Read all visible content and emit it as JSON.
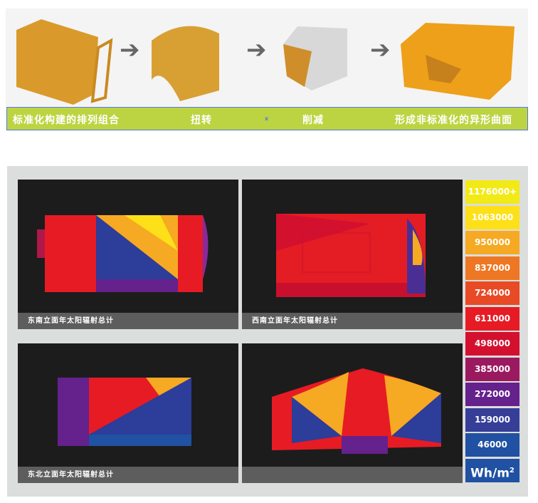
{
  "process": {
    "steps": [
      "标准化构建的排列组合",
      "扭转",
      "削减",
      "形成非标准化的异形曲面"
    ],
    "marker": "x"
  },
  "panels": [
    {
      "label": "东南立面年太阳辐射总计"
    },
    {
      "label": "西南立面年太阳辐射总计"
    },
    {
      "label": "东北立面年太阳辐射总计"
    },
    {
      "label": ""
    }
  ],
  "legend": {
    "items": [
      {
        "label": "1176000+",
        "color": "#f2ea17"
      },
      {
        "label": "1063000",
        "color": "#fde018"
      },
      {
        "label": "950000",
        "color": "#f6a922"
      },
      {
        "label": "837000",
        "color": "#ee7723"
      },
      {
        "label": "724000",
        "color": "#e84a25"
      },
      {
        "label": "611000",
        "color": "#e71b24"
      },
      {
        "label": "498000",
        "color": "#d3102e"
      },
      {
        "label": "385000",
        "color": "#9b1a5f"
      },
      {
        "label": "272000",
        "color": "#65218c"
      },
      {
        "label": "159000",
        "color": "#363e97"
      },
      {
        "label": "46000",
        "color": "#2051a2"
      }
    ],
    "unit": "Wh/m",
    "unit_sup": "2",
    "unit_color": "#2051a2"
  }
}
